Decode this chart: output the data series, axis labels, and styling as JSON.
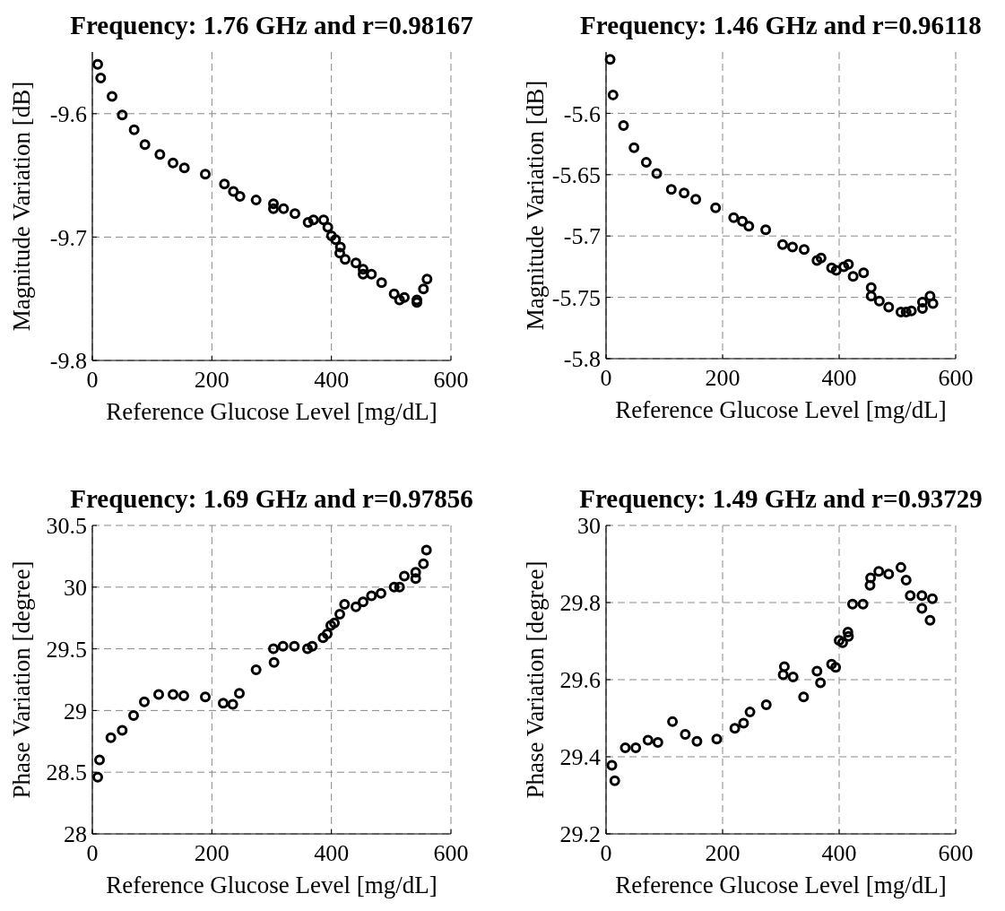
{
  "chart_data": [
    {
      "type": "scatter",
      "title": "Frequency:  1.76 GHz and r=0.98167",
      "xlabel": "Reference Glucose Level [mg/dL]",
      "ylabel": "Magnitude Variation [dB]",
      "xlim": [
        0,
        600
      ],
      "xticks": [
        0,
        200,
        400,
        600
      ],
      "ylim": [
        -9.8,
        -9.55
      ],
      "yticks": [
        -9.8,
        -9.7,
        -9.6
      ],
      "grid": true,
      "marker": "circle",
      "series": [
        {
          "color": "#000000",
          "x": [
            9,
            14,
            33,
            50,
            70,
            88,
            113,
            135,
            154,
            189,
            221,
            236,
            247,
            274,
            303,
            303,
            320,
            339,
            361,
            370,
            387,
            394,
            400,
            407,
            415,
            414,
            423,
            441,
            453,
            453,
            467,
            484,
            505,
            514,
            522,
            543,
            543,
            554,
            560
          ],
          "values": [
            -9.56,
            -9.571,
            -9.586,
            -9.601,
            -9.613,
            -9.625,
            -9.633,
            -9.64,
            -9.644,
            -9.649,
            -9.657,
            -9.663,
            -9.667,
            -9.67,
            -9.673,
            -9.677,
            -9.677,
            -9.681,
            -9.688,
            -9.686,
            -9.686,
            -9.692,
            -9.699,
            -9.702,
            -9.708,
            -9.713,
            -9.718,
            -9.721,
            -9.726,
            -9.73,
            -9.73,
            -9.737,
            -9.746,
            -9.751,
            -9.749,
            -9.751,
            -9.753,
            -9.742,
            -9.734
          ]
        }
      ]
    },
    {
      "type": "scatter",
      "title": "Frequency:  1.46 GHz and r=0.96118",
      "xlabel": "Reference Glucose Level [mg/dL]",
      "ylabel": "Magnitude Variation [dB]",
      "xlim": [
        0,
        600
      ],
      "xticks": [
        0,
        200,
        400,
        600
      ],
      "ylim": [
        -5.8,
        -5.55
      ],
      "yticks": [
        -5.8,
        -5.75,
        -5.7,
        -5.65,
        -5.6
      ],
      "grid": true,
      "marker": "circle",
      "series": [
        {
          "color": "#000000",
          "x": [
            7,
            12,
            30,
            48,
            69,
            87,
            112,
            134,
            154,
            188,
            219,
            234,
            245,
            274,
            303,
            320,
            340,
            362,
            369,
            387,
            395,
            408,
            416,
            424,
            442,
            455,
            455,
            469,
            485,
            506,
            515,
            524,
            543,
            543,
            556,
            561
          ],
          "values": [
            -5.556,
            -5.585,
            -5.61,
            -5.628,
            -5.64,
            -5.649,
            -5.662,
            -5.665,
            -5.67,
            -5.677,
            -5.685,
            -5.688,
            -5.692,
            -5.695,
            -5.707,
            -5.709,
            -5.711,
            -5.72,
            -5.718,
            -5.726,
            -5.728,
            -5.725,
            -5.723,
            -5.733,
            -5.73,
            -5.742,
            -5.749,
            -5.753,
            -5.758,
            -5.762,
            -5.762,
            -5.761,
            -5.754,
            -5.759,
            -5.749,
            -5.755
          ]
        }
      ]
    },
    {
      "type": "scatter",
      "title": "Frequency:  1.69 GHz and r=0.97856",
      "xlabel": "Reference Glucose Level [mg/dL]",
      "ylabel": "Phase Variation [degree]",
      "xlim": [
        0,
        600
      ],
      "xticks": [
        0,
        200,
        400,
        600
      ],
      "ylim": [
        28,
        30.5
      ],
      "yticks": [
        28,
        28.5,
        29,
        29.5,
        30,
        30.5
      ],
      "grid": true,
      "marker": "circle",
      "series": [
        {
          "color": "#000000",
          "x": [
            9,
            12,
            31,
            50,
            69,
            87,
            111,
            135,
            153,
            189,
            219,
            235,
            246,
            274,
            304,
            303,
            319,
            338,
            360,
            368,
            386,
            393,
            399,
            405,
            414,
            422,
            441,
            453,
            467,
            483,
            505,
            514,
            522,
            541,
            541,
            554,
            559
          ],
          "values": [
            28.46,
            28.6,
            28.78,
            28.84,
            28.96,
            29.07,
            29.13,
            29.13,
            29.12,
            29.11,
            29.06,
            29.05,
            29.14,
            29.33,
            29.39,
            29.5,
            29.52,
            29.52,
            29.5,
            29.52,
            29.59,
            29.62,
            29.69,
            29.71,
            29.78,
            29.86,
            29.84,
            29.88,
            29.93,
            29.95,
            30.0,
            30.0,
            30.09,
            30.12,
            30.07,
            30.19,
            30.3
          ]
        }
      ]
    },
    {
      "type": "scatter",
      "title": "Frequency:  1.49 GHz and r=0.93729",
      "xlabel": "Reference Glucose Level [mg/dL]",
      "ylabel": "Phase Variation [degree]",
      "xlim": [
        0,
        600
      ],
      "xticks": [
        0,
        200,
        400,
        600
      ],
      "ylim": [
        29.2,
        30
      ],
      "yticks": [
        29.2,
        29.4,
        29.6,
        29.8,
        30
      ],
      "grid": true,
      "marker": "circle",
      "series": [
        {
          "color": "#000000",
          "x": [
            10,
            15,
            33,
            51,
            72,
            89,
            114,
            136,
            156,
            190,
            221,
            236,
            247,
            275,
            304,
            306,
            321,
            339,
            362,
            368,
            387,
            394,
            400,
            406,
            415,
            416,
            423,
            441,
            453,
            454,
            468,
            485,
            506,
            515,
            522,
            542,
            542,
            556,
            560
          ],
          "values": [
            29.378,
            29.338,
            29.423,
            29.423,
            29.443,
            29.437,
            29.491,
            29.458,
            29.44,
            29.446,
            29.474,
            29.487,
            29.516,
            29.535,
            29.613,
            29.634,
            29.607,
            29.555,
            29.622,
            29.592,
            29.64,
            29.632,
            29.702,
            29.696,
            29.723,
            29.712,
            29.796,
            29.796,
            29.845,
            29.864,
            29.881,
            29.874,
            29.891,
            29.858,
            29.818,
            29.818,
            29.785,
            29.754,
            29.81
          ]
        }
      ]
    }
  ]
}
